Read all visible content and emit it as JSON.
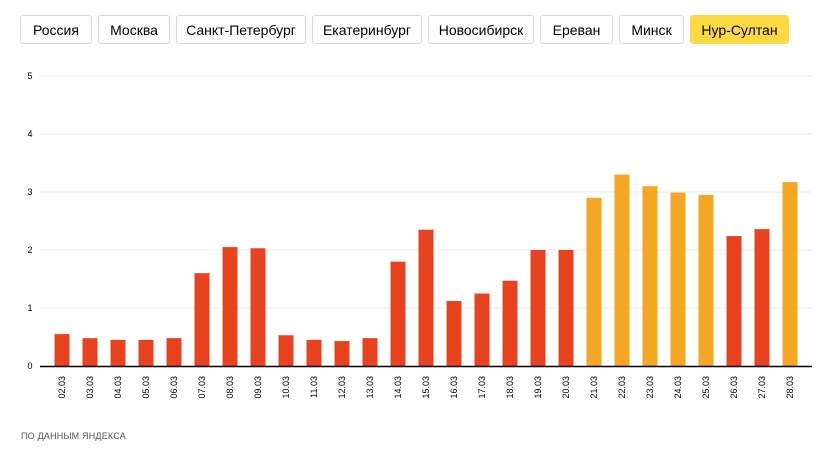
{
  "tabs": [
    {
      "label": "Россия",
      "active": false
    },
    {
      "label": "Москва",
      "active": false
    },
    {
      "label": "Санкт-Петербург",
      "active": false
    },
    {
      "label": "Екатеринбург",
      "active": false
    },
    {
      "label": "Новосибирск",
      "active": false
    },
    {
      "label": "Ереван",
      "active": false
    },
    {
      "label": "Минск",
      "active": false
    },
    {
      "label": "Нур-Султан",
      "active": true
    }
  ],
  "colors": {
    "active_tab": "#fed942",
    "bar_normal": "#e8431e",
    "bar_highlight": "#f5a623",
    "grid": "#eeeeee",
    "axis": "#000000"
  },
  "chart_data": {
    "type": "bar",
    "categories": [
      "02.03",
      "03.03",
      "04.03",
      "05.03",
      "06.03",
      "07.03",
      "08.03",
      "09.03",
      "10.03",
      "11.03",
      "12.03",
      "13.03",
      "14.03",
      "15.03",
      "16.03",
      "17.03",
      "18.03",
      "19.03",
      "20.03",
      "21.03",
      "22.03",
      "23.03",
      "24.03",
      "25.03",
      "26.03",
      "27.03",
      "28.03"
    ],
    "values": [
      0.55,
      0.48,
      0.45,
      0.45,
      0.48,
      1.6,
      2.05,
      2.03,
      0.53,
      0.45,
      0.43,
      0.48,
      1.8,
      2.35,
      1.12,
      1.25,
      1.47,
      2.0,
      2.0,
      2.9,
      3.3,
      3.1,
      2.99,
      2.95,
      2.24,
      2.36,
      3.17
    ],
    "highlighted": [
      "21.03",
      "22.03",
      "23.03",
      "24.03",
      "25.03",
      "28.03"
    ],
    "yticks": [
      0,
      1,
      2,
      3,
      4,
      5
    ],
    "ylim": [
      0,
      5
    ],
    "grid": true,
    "title": "",
    "xlabel": "",
    "ylabel": ""
  },
  "source": "ПО ДАННЫМ ЯНДЕКСА"
}
